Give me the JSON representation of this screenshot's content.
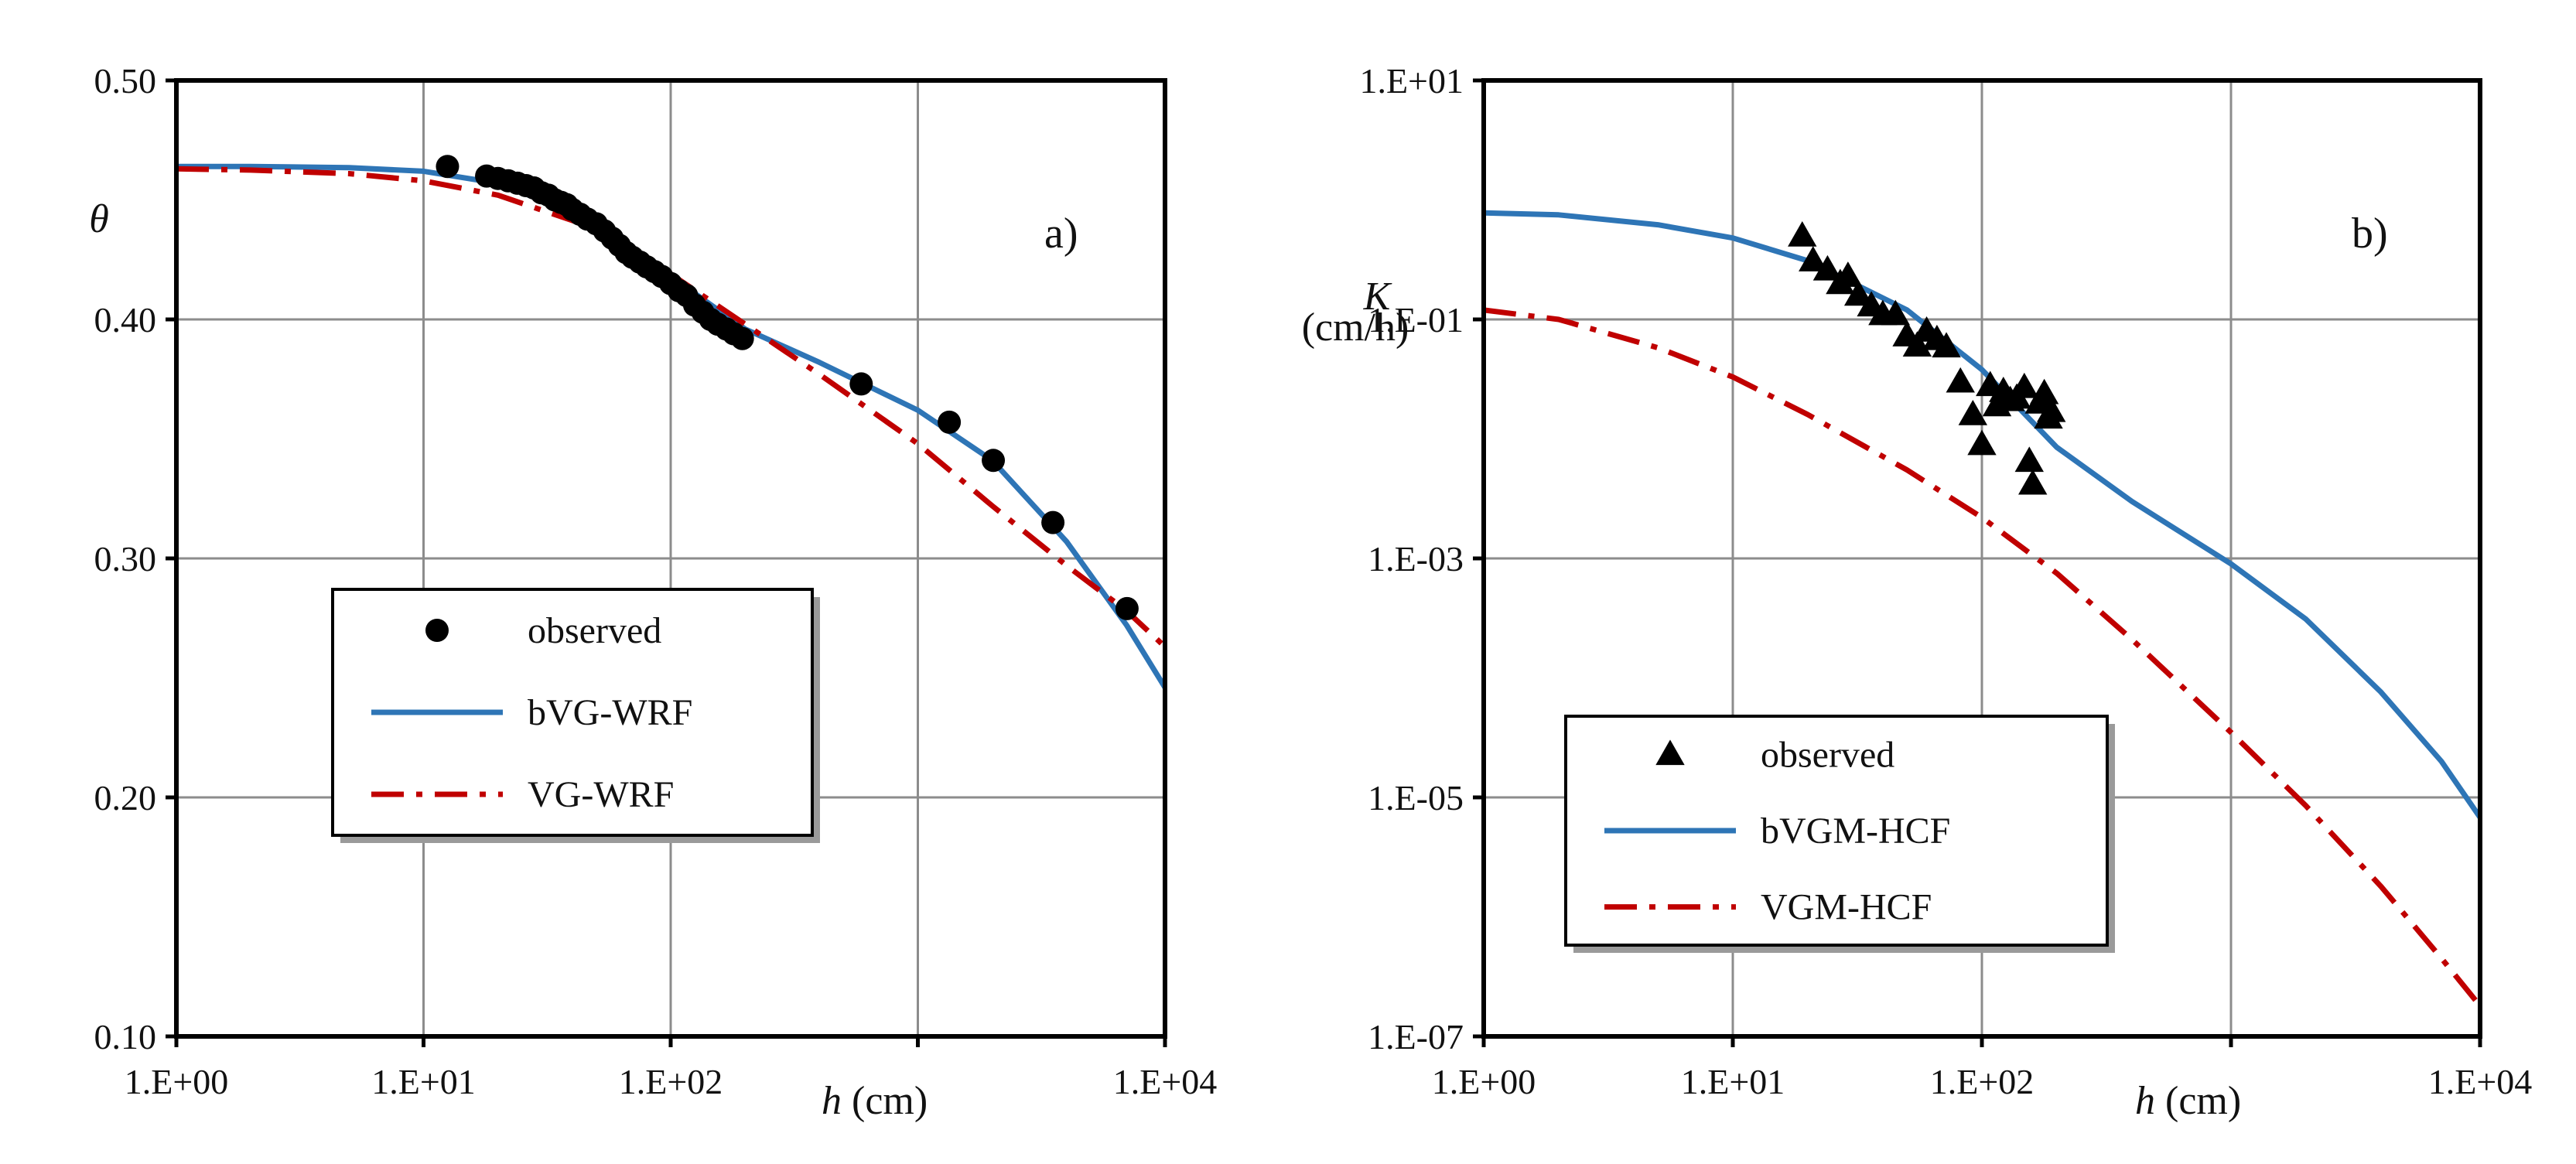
{
  "chart_data": [
    {
      "type": "line",
      "panel_label": "a)",
      "xscale": "log",
      "xlim": [
        1,
        10000
      ],
      "ylim": [
        0.1,
        0.5
      ],
      "x_tick_labels": [
        "1.E+00",
        "1.E+01",
        "1.E+02",
        "1.E+04"
      ],
      "x_tick_values": [
        1,
        10,
        100,
        10000
      ],
      "x_gridlines": [
        1,
        10,
        100,
        1000,
        10000
      ],
      "y_tick_labels": [
        "0.50",
        "0.40",
        "0.30",
        "0.20",
        "0.10"
      ],
      "y_tick_values": [
        0.5,
        0.4,
        0.3,
        0.2,
        0.1
      ],
      "xlabel_var": "h",
      "xlabel_unit": " (cm)",
      "ylabel_var": "θ",
      "ylabel_unit": "",
      "grid": true,
      "legend": {
        "position": "lower-left",
        "entries": [
          {
            "name": "observed",
            "style": "circle-marker",
            "color": "#000000"
          },
          {
            "name": "bVG-WRF",
            "style": "solid",
            "color": "#2E75B6"
          },
          {
            "name": "VG-WRF",
            "style": "dash-dot",
            "color": "#C00000"
          }
        ]
      },
      "series": [
        {
          "name": "observed",
          "kind": "scatter",
          "marker": "circle",
          "color": "#000000",
          "points": [
            [
              12.5,
              0.464
            ],
            [
              18,
              0.46
            ],
            [
              20,
              0.459
            ],
            [
              22,
              0.458
            ],
            [
              24,
              0.457
            ],
            [
              26,
              0.456
            ],
            [
              28,
              0.455
            ],
            [
              30,
              0.453
            ],
            [
              32,
              0.452
            ],
            [
              34,
              0.45
            ],
            [
              36,
              0.449
            ],
            [
              38,
              0.448
            ],
            [
              40,
              0.446
            ],
            [
              43,
              0.444
            ],
            [
              46,
              0.442
            ],
            [
              50,
              0.44
            ],
            [
              54,
              0.437
            ],
            [
              58,
              0.434
            ],
            [
              62,
              0.431
            ],
            [
              66,
              0.428
            ],
            [
              70,
              0.426
            ],
            [
              75,
              0.424
            ],
            [
              80,
              0.422
            ],
            [
              86,
              0.42
            ],
            [
              92,
              0.418
            ],
            [
              100,
              0.415
            ],
            [
              108,
              0.412
            ],
            [
              116,
              0.41
            ],
            [
              125,
              0.406
            ],
            [
              135,
              0.403
            ],
            [
              145,
              0.4
            ],
            [
              155,
              0.398
            ],
            [
              168,
              0.396
            ],
            [
              180,
              0.394
            ],
            [
              195,
              0.392
            ],
            [
              590,
              0.373
            ],
            [
              1340,
              0.357
            ],
            [
              2020,
              0.341
            ],
            [
              3520,
              0.315
            ],
            [
              7020,
              0.279
            ]
          ]
        },
        {
          "name": "bVG-WRF",
          "kind": "line",
          "color": "#2E75B6",
          "points": [
            [
              1,
              0.464
            ],
            [
              2,
              0.464
            ],
            [
              5,
              0.4635
            ],
            [
              10,
              0.462
            ],
            [
              20,
              0.457
            ],
            [
              50,
              0.441
            ],
            [
              100,
              0.418
            ],
            [
              200,
              0.396
            ],
            [
              400,
              0.382
            ],
            [
              1000,
              0.362
            ],
            [
              2000,
              0.341
            ],
            [
              4000,
              0.307
            ],
            [
              7000,
              0.272
            ],
            [
              10000,
              0.246
            ]
          ]
        },
        {
          "name": "VG-WRF",
          "kind": "line",
          "color": "#C00000",
          "points": [
            [
              1,
              0.463
            ],
            [
              2,
              0.4625
            ],
            [
              5,
              0.461
            ],
            [
              10,
              0.458
            ],
            [
              20,
              0.452
            ],
            [
              50,
              0.438
            ],
            [
              100,
              0.419
            ],
            [
              200,
              0.398
            ],
            [
              400,
              0.377
            ],
            [
              1000,
              0.348
            ],
            [
              2000,
              0.322
            ],
            [
              4000,
              0.297
            ],
            [
              7000,
              0.278
            ],
            [
              10000,
              0.263
            ]
          ]
        }
      ]
    },
    {
      "type": "line",
      "panel_label": "b)",
      "xscale": "log",
      "yscale": "log",
      "xlim": [
        1,
        10000
      ],
      "ylim": [
        1e-07,
        10
      ],
      "x_tick_labels": [
        "1.E+00",
        "1.E+01",
        "1.E+02",
        "1.E+04"
      ],
      "x_tick_values": [
        1,
        10,
        100,
        10000
      ],
      "x_gridlines": [
        1,
        10,
        100,
        1000,
        10000
      ],
      "y_tick_labels": [
        "1.E+01",
        "1.E-01",
        "1.E-03",
        "1.E-05",
        "1.E-07"
      ],
      "y_tick_values": [
        10,
        0.1,
        0.001,
        1e-05,
        1e-07
      ],
      "xlabel_var": "h",
      "xlabel_unit": " (cm)",
      "ylabel_var": "K",
      "ylabel_unit": "(cm/h)",
      "grid": true,
      "legend": {
        "position": "lower-left",
        "entries": [
          {
            "name": "observed",
            "style": "triangle-marker",
            "color": "#000000"
          },
          {
            "name": "bVGM-HCF",
            "style": "solid",
            "color": "#2E75B6"
          },
          {
            "name": "VGM-HCF",
            "style": "dash-dot",
            "color": "#C00000"
          }
        ]
      },
      "series": [
        {
          "name": "observed",
          "kind": "scatter",
          "marker": "triangle",
          "color": "#000000",
          "points": [
            [
              19,
              0.5
            ],
            [
              21,
              0.31
            ],
            [
              24,
              0.26
            ],
            [
              27,
              0.2
            ],
            [
              29,
              0.23
            ],
            [
              32,
              0.16
            ],
            [
              36,
              0.13
            ],
            [
              40,
              0.11
            ],
            [
              45,
              0.11
            ],
            [
              50,
              0.073
            ],
            [
              55,
              0.06
            ],
            [
              60,
              0.08
            ],
            [
              66,
              0.068
            ],
            [
              72,
              0.059
            ],
            [
              82,
              0.03
            ],
            [
              92,
              0.016
            ],
            [
              100,
              0.009
            ],
            [
              108,
              0.028
            ],
            [
              115,
              0.019
            ],
            [
              122,
              0.025
            ],
            [
              130,
              0.021
            ],
            [
              138,
              0.022
            ],
            [
              148,
              0.027
            ],
            [
              155,
              0.0065
            ],
            [
              160,
              0.0042
            ],
            [
              170,
              0.02
            ],
            [
              178,
              0.024
            ],
            [
              185,
              0.015
            ],
            [
              190,
              0.017
            ]
          ]
        },
        {
          "name": "bVGM-HCF",
          "kind": "line",
          "color": "#2E75B6",
          "points": [
            [
              1,
              0.78
            ],
            [
              2,
              0.75
            ],
            [
              5,
              0.62
            ],
            [
              10,
              0.48
            ],
            [
              20,
              0.31
            ],
            [
              50,
              0.12
            ],
            [
              100,
              0.038
            ],
            [
              200,
              0.0085
            ],
            [
              400,
              0.003
            ],
            [
              1000,
              0.0009
            ],
            [
              2000,
              0.00031
            ],
            [
              4000,
              7.6e-05
            ],
            [
              7000,
              2e-05
            ],
            [
              10000,
              6.8e-06
            ]
          ]
        },
        {
          "name": "VGM-HCF",
          "kind": "line",
          "color": "#C00000",
          "points": [
            [
              1,
              0.12
            ],
            [
              2,
              0.1
            ],
            [
              5,
              0.058
            ],
            [
              10,
              0.033
            ],
            [
              20,
              0.016
            ],
            [
              50,
              0.0055
            ],
            [
              100,
              0.0022
            ],
            [
              200,
              0.00075
            ],
            [
              400,
              0.00021
            ],
            [
              1000,
              3.5e-05
            ],
            [
              2000,
              8.5e-06
            ],
            [
              4000,
              1.8e-06
            ],
            [
              7000,
              4.5e-07
            ],
            [
              10000,
              1.8e-07
            ]
          ]
        }
      ]
    }
  ]
}
